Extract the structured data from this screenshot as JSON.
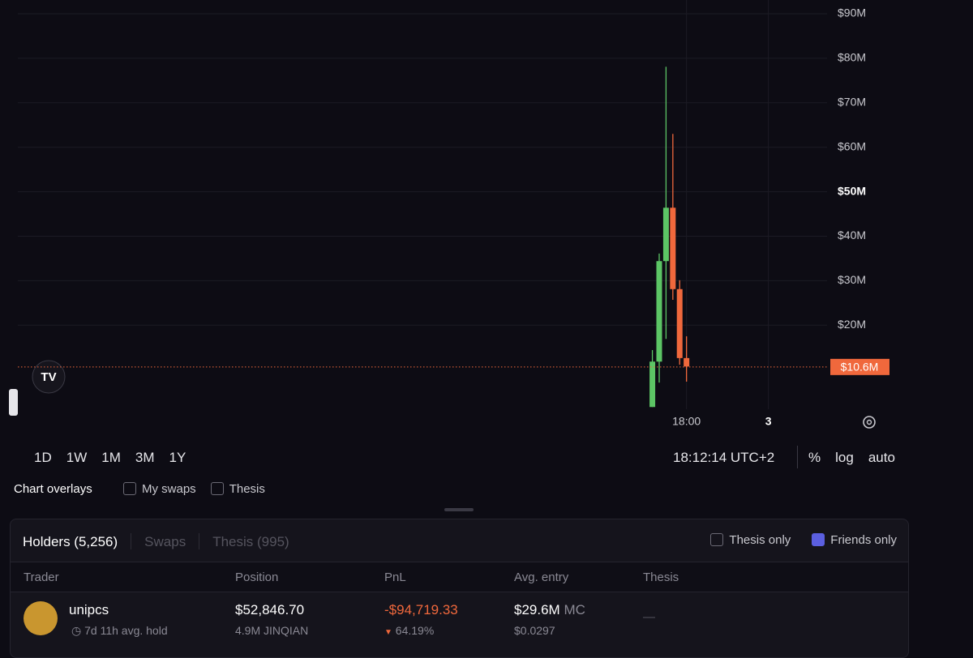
{
  "chart_data": {
    "type": "candlestick",
    "x": [
      15.5,
      16,
      16.5,
      17,
      17.5,
      18
    ],
    "open": [
      1.6,
      11.8,
      34.4,
      46.4,
      28.1,
      12.6
    ],
    "high": [
      14.4,
      36.1,
      78.1,
      63.0,
      30.1,
      17.5
    ],
    "low": [
      1.6,
      7.1,
      16.9,
      25.7,
      11.1,
      7.3
    ],
    "close": [
      11.8,
      34.4,
      46.4,
      28.1,
      12.6,
      10.7
    ],
    "up_color": "#5cc565",
    "down_color": "#f0683c",
    "xlim": [
      -31,
      28.3
    ],
    "xticks": [
      {
        "value": 18,
        "label": "18:00"
      },
      {
        "value": 24,
        "label": "3"
      }
    ],
    "ylim": [
      1.1,
      93.1
    ],
    "yticks": [
      {
        "value": 20,
        "label": "$20M"
      },
      {
        "value": 30,
        "label": "$30M"
      },
      {
        "value": 40,
        "label": "$40M"
      },
      {
        "value": 50,
        "label": "$50M"
      },
      {
        "value": 60,
        "label": "$60M"
      },
      {
        "value": 70,
        "label": "$70M"
      },
      {
        "value": 80,
        "label": "$80M"
      },
      {
        "value": 90,
        "label": "$90M"
      }
    ],
    "grid": true,
    "current_price": {
      "value": 10.6,
      "label": "$10.6M"
    }
  },
  "controls": {
    "timeframes": [
      "1D",
      "1W",
      "1M",
      "3M",
      "1Y"
    ],
    "clock": "18:12:14 UTC+2",
    "options": [
      "%",
      "log",
      "auto"
    ],
    "overlays_label": "Chart overlays",
    "overlays": [
      "My swaps",
      "Thesis"
    ]
  },
  "table": {
    "tabs": [
      "Holders (5,256)",
      "Swaps",
      "Thesis (995)"
    ],
    "filters": [
      "Thesis only",
      "Friends only"
    ],
    "columns": [
      "Trader",
      "Position",
      "PnL",
      "Avg. entry",
      "Thesis"
    ],
    "rows": [
      {
        "trader": "unipcs",
        "hold": "7d 11h avg. hold",
        "position": "$52,846.70",
        "amount": "4.9M JINQIAN",
        "pnl": "-$94,719.33",
        "pnl_pct": "64.19%",
        "entry_mc": "$29.6M",
        "entry_mc_unit": "MC",
        "entry_price": "$0.0297",
        "thesis": "—"
      }
    ]
  }
}
